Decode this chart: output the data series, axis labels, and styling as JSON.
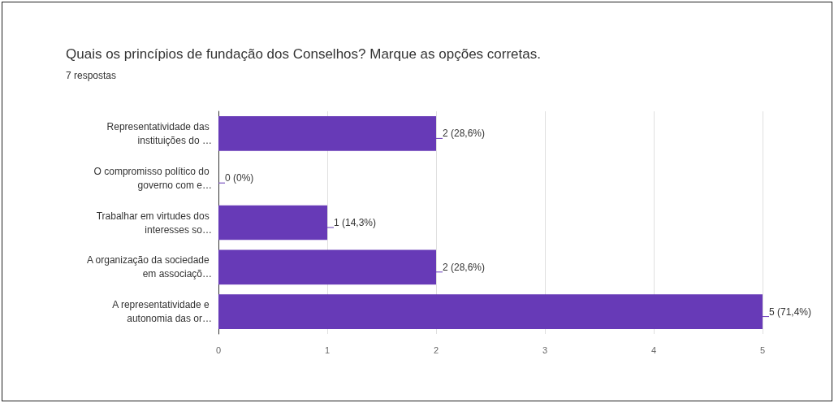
{
  "chart_data": {
    "type": "bar",
    "orientation": "horizontal",
    "title": "Quais os princípios de fundação dos Conselhos? Marque as opções corretas.",
    "subtitle": "7 respostas",
    "categories": [
      "Representatividade das instituições do …",
      "O compromisso político do governo com e…",
      "Trabalhar em virtudes dos interesses so…",
      "A organização da sociedade em associaçõ…",
      "A representatividade e autonomia das or…"
    ],
    "values": [
      2,
      0,
      1,
      2,
      5
    ],
    "value_labels": [
      "2 (28,6%)",
      "0 (0%)",
      "1 (14,3%)",
      "2 (28,6%)",
      "5 (71,4%)"
    ],
    "color": "#673ab7",
    "xlim": [
      0,
      5
    ],
    "xticks": [
      0,
      1,
      2,
      3,
      4,
      5
    ],
    "grid": "x"
  }
}
